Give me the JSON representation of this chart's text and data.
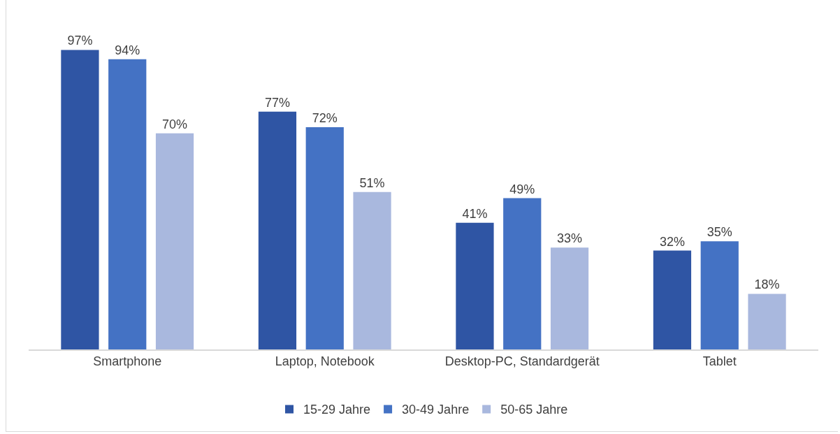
{
  "chart_data": {
    "type": "bar",
    "categories": [
      "Smartphone",
      "Laptop, Notebook",
      "Desktop-PC, Standardgerät",
      "Tablet"
    ],
    "series": [
      {
        "name": "15-29 Jahre",
        "color": "#2f55a4",
        "values": [
          97,
          77,
          41,
          32
        ],
        "value_labels": [
          "97%",
          "77%",
          "41%",
          "32%"
        ]
      },
      {
        "name": "30-49 Jahre",
        "color": "#4472c4",
        "values": [
          94,
          72,
          49,
          35
        ],
        "value_labels": [
          "94%",
          "72%",
          "49%",
          "35%"
        ]
      },
      {
        "name": "50-65 Jahre",
        "color": "#a9b8de",
        "values": [
          70,
          51,
          33,
          18
        ],
        "value_labels": [
          "70%",
          "51%",
          "33%",
          "18%"
        ]
      }
    ],
    "grid": false,
    "legend": "bottom"
  }
}
